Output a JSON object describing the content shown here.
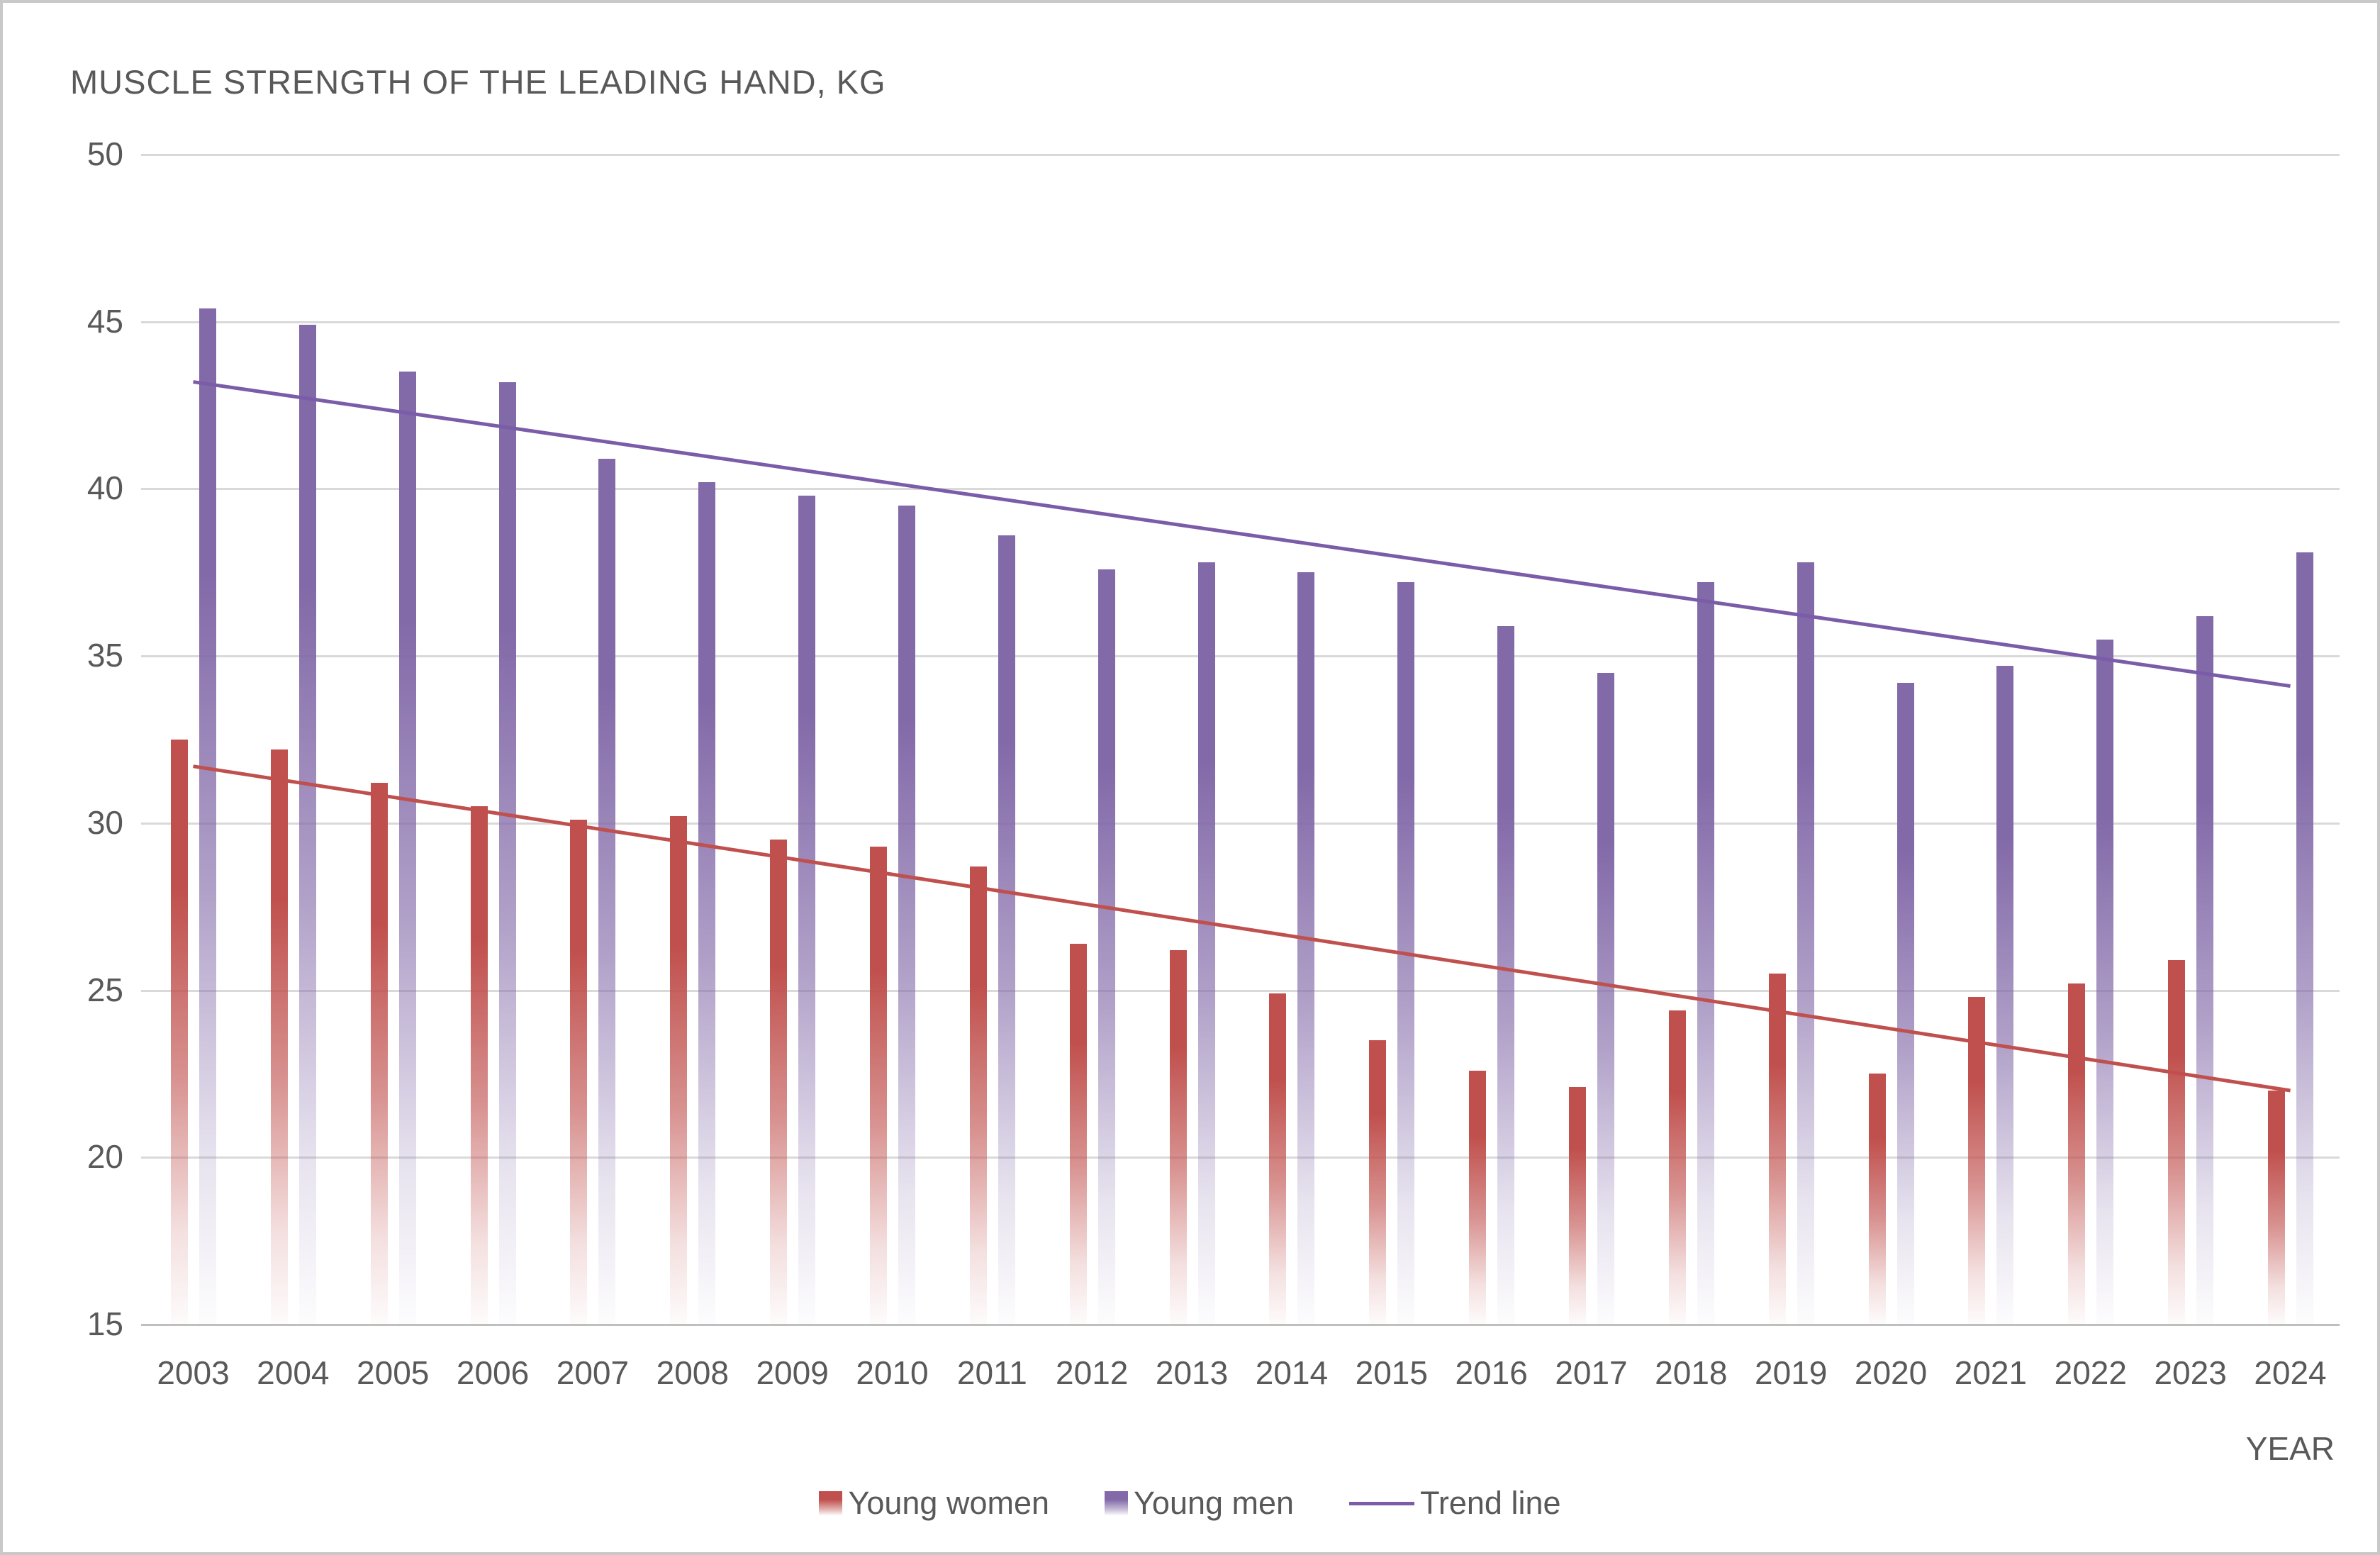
{
  "title": "MUSCLE STRENGTH OF THE LEADING HAND, KG",
  "x_axis_label": "YEAR",
  "legend": {
    "women_label": "Young women",
    "men_label": "Young men",
    "trend_label": "Trend line"
  },
  "colors": {
    "women_bar": "#C0504D",
    "men_bar": "#8269A8",
    "women_trend": "#C0504D",
    "men_trend": "#7A5CA8",
    "gridline": "#D9D9D9",
    "axis_line": "#BFBFBF",
    "text": "#595959",
    "canvas_border": "#C9C9C9"
  },
  "chart_data": {
    "type": "bar",
    "title": "MUSCLE STRENGTH OF THE LEADING HAND, KG",
    "xlabel": "YEAR",
    "ylabel": "",
    "ylim": [
      15,
      50
    ],
    "yticks": [
      50,
      45,
      40,
      35,
      30,
      25,
      20,
      15
    ],
    "grid": true,
    "legend_position": "bottom",
    "categories": [
      2003,
      2004,
      2005,
      2006,
      2007,
      2008,
      2009,
      2010,
      2011,
      2012,
      2013,
      2014,
      2015,
      2016,
      2017,
      2018,
      2019,
      2020,
      2021,
      2022,
      2023,
      2024
    ],
    "series": [
      {
        "name": "Young women",
        "color": "#C0504D",
        "values": [
          32.5,
          32.2,
          31.2,
          30.5,
          30.1,
          30.2,
          29.5,
          29.3,
          28.7,
          26.4,
          26.2,
          24.9,
          23.5,
          22.6,
          22.1,
          24.4,
          25.5,
          22.5,
          24.8,
          25.2,
          25.9,
          22.0
        ]
      },
      {
        "name": "Young men",
        "color": "#8269A8",
        "values": [
          45.4,
          44.9,
          43.5,
          43.2,
          40.9,
          40.2,
          39.8,
          39.5,
          38.6,
          37.6,
          37.8,
          37.5,
          37.2,
          35.9,
          34.5,
          37.2,
          37.8,
          34.2,
          34.7,
          35.5,
          36.2,
          38.1
        ]
      }
    ],
    "trend_lines": [
      {
        "name": "Trend line (Young men)",
        "color": "#7A5CA8",
        "start_value": 43.2,
        "end_value": 34.1
      },
      {
        "name": "Trend line (Young women)",
        "color": "#C0504D",
        "start_value": 31.7,
        "end_value": 22.0
      }
    ]
  }
}
